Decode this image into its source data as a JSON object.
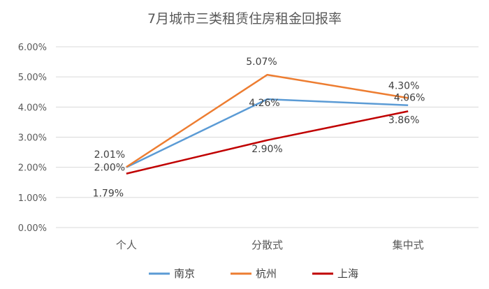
{
  "chart_data": {
    "type": "line",
    "title": "7月城市三类租赁住房租金回报率",
    "categories": [
      "个人",
      "分散式",
      "集中式"
    ],
    "series": [
      {
        "name": "南京",
        "color": "#5b9bd5",
        "values": [
          2.0,
          4.26,
          4.06
        ],
        "labels": [
          "2.00%",
          "4.26%",
          "4.06%"
        ]
      },
      {
        "name": "杭州",
        "color": "#ed7d31",
        "values": [
          2.01,
          5.07,
          4.3
        ],
        "labels": [
          "2.01%",
          "5.07%",
          "4.30%"
        ]
      },
      {
        "name": "上海",
        "color": "#c00000",
        "values": [
          1.79,
          2.9,
          3.86
        ],
        "labels": [
          "1.79%",
          "2.90%",
          "3.86%"
        ]
      }
    ],
    "yticks": [
      "0.00%",
      "1.00%",
      "2.00%",
      "3.00%",
      "4.00%",
      "5.00%",
      "6.00%"
    ],
    "ylim": [
      0,
      6
    ],
    "grid": true,
    "legend": "bottom"
  }
}
